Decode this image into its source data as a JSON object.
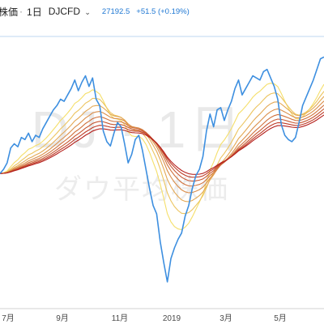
{
  "header": {
    "title": "株価",
    "separator": "·",
    "interval": "1日",
    "symbol": "DJCFD",
    "chevron": "⌄",
    "last_price": "27192.5",
    "change": "+51.5 (+0.19%)"
  },
  "watermark": {
    "main": "DJ · 1日",
    "sub": "ダウ平均株価"
  },
  "colors": {
    "price_line": "#3d8fe0",
    "ribbon_from": "#f5df6a",
    "ribbon_to": "#b5201c",
    "accent_text": "#1e77d3",
    "baseline": "#bcd7f2"
  },
  "chart_data": {
    "type": "line",
    "x_ticks": [
      "7月",
      "9月",
      "11月",
      "2019",
      "3月",
      "5月"
    ],
    "series": [
      {
        "values": [
          24450,
          24550,
          24700,
          25050,
          25150,
          25080,
          25300,
          25250,
          25400,
          25200,
          25350,
          25300,
          25500,
          25650,
          25800,
          25950,
          26050,
          26200,
          26150,
          26300,
          26450,
          26650,
          26400,
          26600,
          26750,
          26500,
          26700,
          26200,
          26050,
          25450,
          25200,
          25100,
          25400,
          25650,
          25550,
          25150,
          24700,
          24900,
          25250,
          25350,
          25000,
          24550,
          24100,
          23700,
          23500,
          22850,
          22350,
          21900,
          22450,
          22700,
          22900,
          23050,
          23450,
          23700,
          24100,
          24400,
          24550,
          24850,
          25450,
          25850,
          25550,
          25950,
          26000,
          25700,
          25950,
          26150,
          26450,
          26650,
          26300,
          26450,
          26600,
          26750,
          26700,
          26650,
          26850,
          26900,
          26700,
          26500,
          26200,
          25600,
          25350,
          25250,
          25200,
          25300,
          25650,
          26050,
          26250,
          26450,
          26650,
          26900,
          27150,
          27192.5
        ]
      }
    ],
    "ribbon": {
      "count": 8,
      "min_period": 10,
      "max_period": 48
    }
  }
}
